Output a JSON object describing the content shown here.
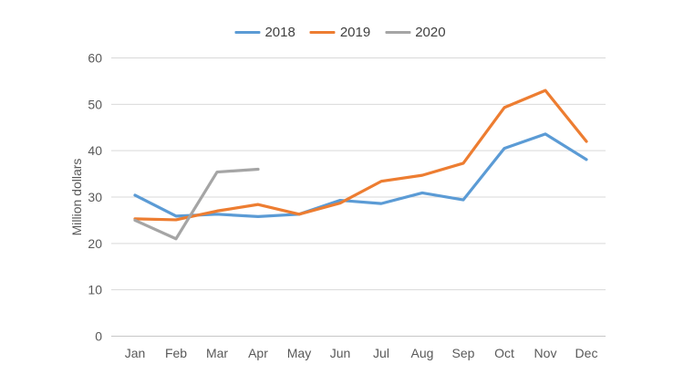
{
  "chart_data": {
    "type": "line",
    "title": "",
    "xlabel": "",
    "ylabel": "Million dollars",
    "categories": [
      "Jan",
      "Feb",
      "Mar",
      "Apr",
      "May",
      "Jun",
      "Jul",
      "Aug",
      "Sep",
      "Oct",
      "Nov",
      "Dec"
    ],
    "series": [
      {
        "name": "2018",
        "color": "#5B9BD5",
        "values": [
          30.4,
          25.9,
          26.3,
          25.8,
          26.3,
          29.3,
          28.6,
          30.9,
          29.4,
          40.5,
          43.6,
          38.1
        ]
      },
      {
        "name": "2019",
        "color": "#ED7D31",
        "values": [
          25.3,
          25.1,
          27.0,
          28.4,
          26.3,
          28.7,
          33.4,
          34.7,
          37.3,
          49.3,
          53.0,
          42.0
        ]
      },
      {
        "name": "2020",
        "color": "#A5A5A5",
        "values": [
          25.0,
          21.0,
          35.4,
          36.0
        ]
      }
    ],
    "ylim": [
      0,
      60
    ],
    "yticks": [
      0,
      10,
      20,
      30,
      40,
      50,
      60
    ],
    "grid": true,
    "legend_position": "top",
    "gridline_color": "#D9D9D9",
    "baseline_color": "#C6C6C6",
    "axis_label_color": "#595959",
    "legend_text_color": "#404040"
  }
}
